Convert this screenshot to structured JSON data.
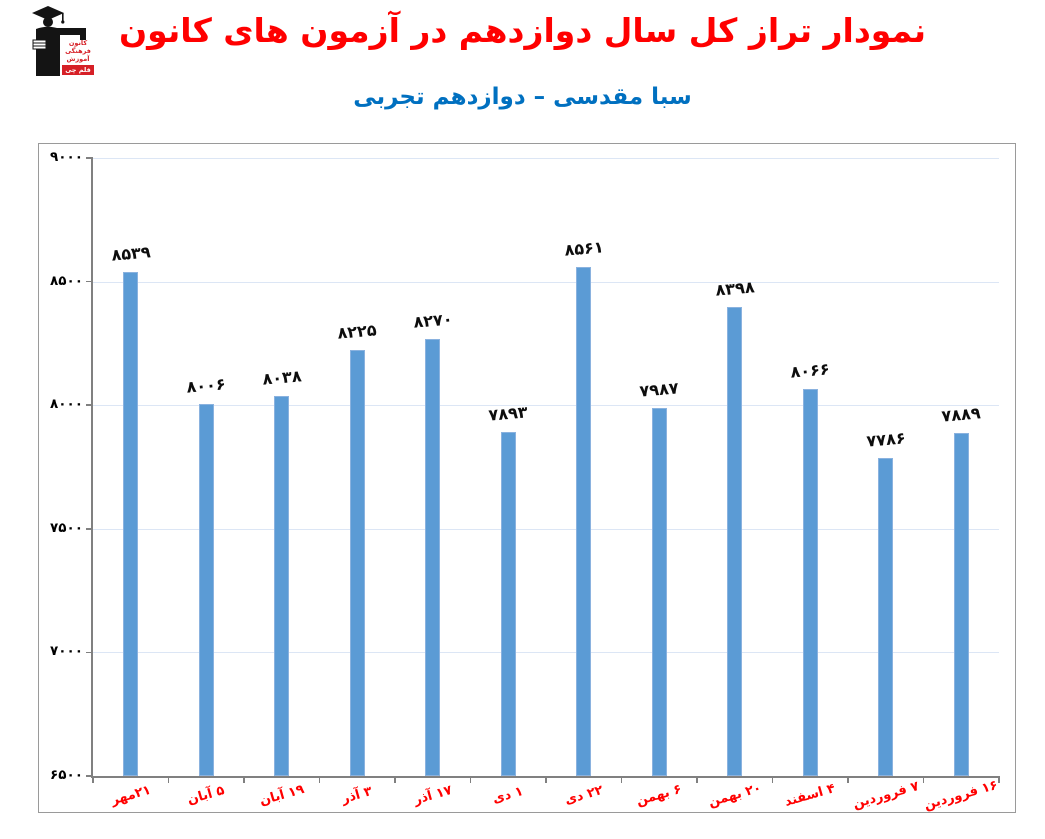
{
  "header": {
    "title": "نمودار تراز کل سال دوازدهم در آزمون های کانون",
    "subtitle": "سبا مقدسی – دوازدهم تجربی",
    "title_color": "#FF0000",
    "subtitle_color": "#0070C0"
  },
  "logo": {
    "name": "kanoon-ghalamchi-logo",
    "lines": [
      "کانون",
      "فرهنگی",
      "آموزش"
    ],
    "badge": "قلم چی",
    "brand_red": "#d61f26"
  },
  "chart_data": {
    "type": "bar",
    "title": "نمودار تراز کل سال دوازدهم در آزمون های کانون",
    "subtitle": "سبا مقدسی – دوازدهم تجربی",
    "categories": [
      "۲۱مهر",
      "۵ آبان",
      "۱۹ آبان",
      "۳ آذر",
      "۱۷ آذر",
      "۱ دی",
      "۲۲ دی",
      "۶ بهمن",
      "۲۰ بهمن",
      "۴ اسفند",
      "۷ فروردین",
      "۱۶ فروردین"
    ],
    "values": [
      8539,
      8006,
      8038,
      8225,
      8270,
      7893,
      8561,
      7987,
      8398,
      8066,
      7786,
      7889
    ],
    "value_labels": [
      "۸۵۳۹",
      "۸۰۰۶",
      "۸۰۳۸",
      "۸۲۲۵",
      "۸۲۷۰",
      "۷۸۹۳",
      "۸۵۶۱",
      "۷۹۸۷",
      "۸۳۹۸",
      "۸۰۶۶",
      "۷۷۸۶",
      "۷۸۸۹"
    ],
    "xlabel": "",
    "ylabel": "",
    "ylim": [
      6500,
      9000
    ],
    "yticks": [
      6500,
      7000,
      7500,
      8000,
      8500,
      9000
    ],
    "ytick_labels": [
      "۶۵۰۰",
      "۷۰۰۰",
      "۷۵۰۰",
      "۸۰۰۰",
      "۸۵۰۰",
      "۹۰۰۰"
    ],
    "grid": true,
    "legend_position": "none",
    "bar_color": "#5B9BD5",
    "bar_border_color": "#8AB2DF",
    "gridline_color": "#DCE6F5",
    "axis_color": "#808080",
    "value_label_color": "#0d0d0d",
    "xtick_label_color": "#FF0000",
    "ytick_label_color": "#000000"
  }
}
